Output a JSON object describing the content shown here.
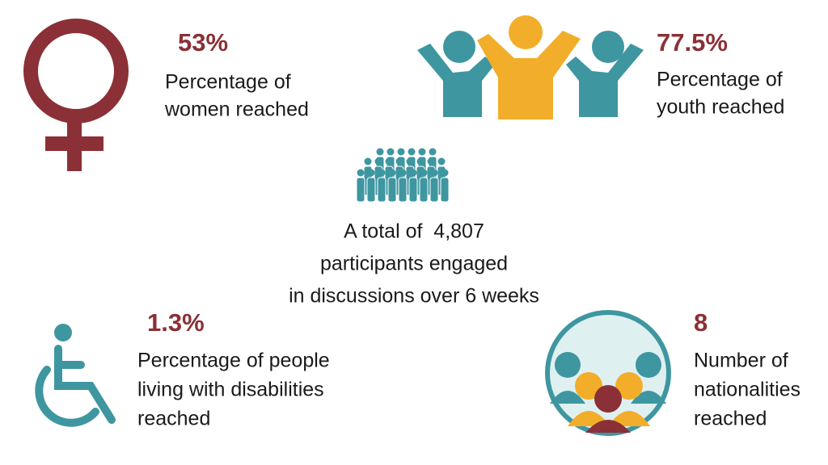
{
  "stats": [
    {
      "value": "53%",
      "label_lines": [
        "Percentage of",
        "women reached"
      ]
    },
    {
      "value": "77.5%",
      "label_lines": [
        "Percentage of",
        "youth reached"
      ]
    },
    {
      "value": "1.3%",
      "label_lines": [
        "Percentage of people",
        "living with disabilities",
        "reached"
      ]
    },
    {
      "value": "8",
      "label_lines": [
        "Number of",
        "nationalities",
        "reached"
      ]
    }
  ],
  "summary": {
    "lines": [
      "A total of  4,807",
      "participants engaged",
      "in discussions over 6 weeks"
    ]
  }
}
